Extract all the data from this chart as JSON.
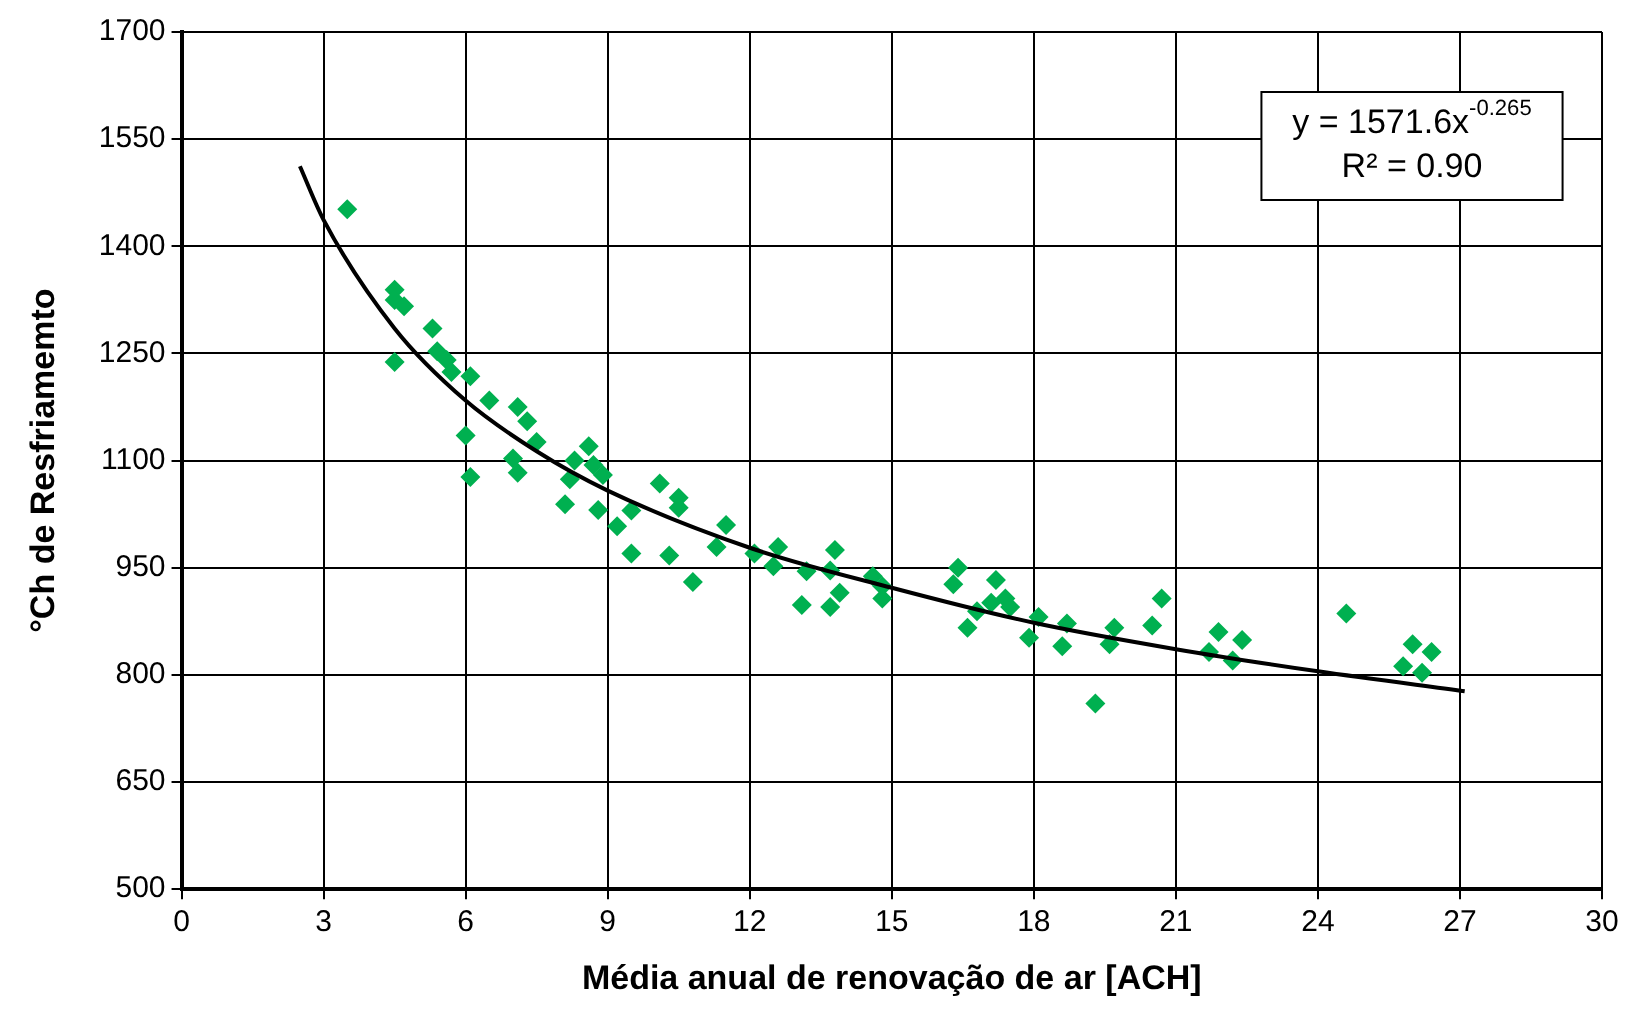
{
  "chart_data": {
    "type": "scatter",
    "xlabel": "Média anual de renovação de ar [ACH]",
    "ylabel": "°Ch de Resfriamemto",
    "xlim": [
      0,
      30
    ],
    "xticks": [
      0,
      3,
      6,
      9,
      12,
      15,
      18,
      21,
      24,
      27,
      30
    ],
    "ylim": [
      500,
      1700
    ],
    "yticks": [
      500,
      650,
      800,
      950,
      1100,
      1250,
      1400,
      1550,
      1700
    ],
    "grid": true,
    "marker": "diamond",
    "legend": false,
    "annotations": [
      "y = 1571.6x$^{-0.265}$",
      "R² = 0.90"
    ],
    "series": [
      {
        "color": "#00b050",
        "x": [
          3.5,
          4.5,
          4.5,
          4.7,
          4.5,
          5.3,
          5.4,
          5.6,
          5.7,
          6.1,
          6.0,
          6.1,
          6.5,
          7.1,
          7.3,
          7.5,
          7.0,
          7.1,
          8.6,
          8.7,
          8.9,
          8.3,
          8.2,
          8.1,
          8.8,
          9.2,
          9.5,
          9.5,
          10.1,
          10.5,
          10.5,
          10.3,
          10.8,
          11.3,
          11.5,
          12.1,
          12.5,
          12.6,
          13.2,
          13.1,
          13.8,
          13.7,
          13.7,
          13.9,
          14.6,
          14.8,
          14.8,
          16.4,
          16.3,
          16.6,
          16.8,
          17.2,
          17.4,
          17.5,
          17.1,
          18.1,
          17.9,
          18.7,
          18.6,
          19.3,
          19.7,
          19.6,
          20.5,
          20.7,
          21.9,
          21.7,
          22.4,
          22.2,
          24.6,
          26.0,
          26.4,
          25.8,
          26.2
        ],
        "values": [
          1452,
          1339,
          1325,
          1316,
          1238,
          1285,
          1253,
          1241,
          1224,
          1218,
          1135,
          1077,
          1184,
          1175,
          1155,
          1126,
          1103,
          1083,
          1120,
          1094,
          1080,
          1100,
          1074,
          1039,
          1031,
          1008,
          1030,
          970,
          1068,
          1048,
          1034,
          967,
          930,
          979,
          1010,
          970,
          952,
          979,
          945,
          898,
          975,
          946,
          895,
          915,
          938,
          924,
          907,
          950,
          927,
          866,
          889,
          933,
          907,
          895,
          901,
          881,
          852,
          872,
          840,
          760,
          866,
          843,
          869,
          907,
          860,
          832,
          849,
          820,
          886,
          843,
          832,
          812,
          803
        ]
      },
      {
        "type": "line",
        "color": "#000000",
        "marker": "none",
        "x": [
          2.5,
          3.0,
          4.5,
          6,
          7.5,
          9,
          12,
          15,
          18,
          21,
          24,
          27.1
        ],
        "values": [
          1512,
          1437,
          1285,
          1184,
          1113,
          1058,
          978,
          922,
          873,
          836,
          805,
          777
        ]
      }
    ]
  }
}
